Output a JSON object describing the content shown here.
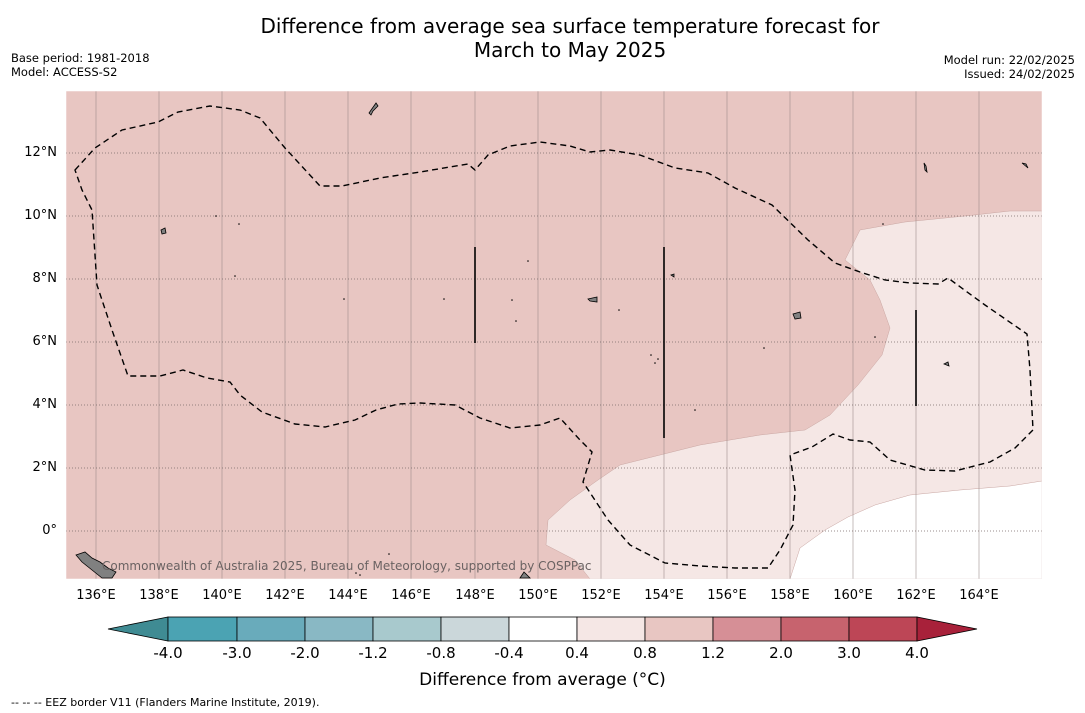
{
  "title_line1": "Difference from average sea surface temperature forecast for",
  "title_line2": "March to May 2025",
  "meta_left": {
    "base_period": "Base period: 1981-2018",
    "model": "Model: ACCESS-S2"
  },
  "meta_right": {
    "model_run": "Model run: 22/02/2025",
    "issued": "Issued: 24/02/2025"
  },
  "map": {
    "lat_labels": [
      "12°N",
      "10°N",
      "8°N",
      "6°N",
      "4°N",
      "2°N",
      "0°"
    ],
    "lon_labels": [
      "136°E",
      "138°E",
      "140°E",
      "142°E",
      "144°E",
      "146°E",
      "148°E",
      "150°E",
      "152°E",
      "154°E",
      "156°E",
      "158°E",
      "160°E",
      "162°E",
      "164°E"
    ],
    "copyright": "Commonwealth of Australia 2025, Bureau of Meteorology, supported by COSPPac",
    "colors": {
      "anomaly_0_8_to_1_2": "#e8c6c2",
      "anomaly_0_4_to_0_8": "#f5e7e5",
      "anomaly_neg0_4_to_0_4": "#ffffff",
      "land": "#808080"
    }
  },
  "colorbar": {
    "ticks": [
      "-4.0",
      "-3.0",
      "-2.0",
      "-1.2",
      "-0.8",
      "-0.4",
      "0.4",
      "0.8",
      "1.2",
      "2.0",
      "3.0",
      "4.0"
    ],
    "colors": [
      "#3f8b93",
      "#4ba3b3",
      "#69abbb",
      "#89b8c4",
      "#a8c9cd",
      "#cbd7da",
      "#ffffff",
      "#f5e7e5",
      "#e8c6c2",
      "#d68f96",
      "#c7636e",
      "#bd4656",
      "#a8213a"
    ],
    "label": "Difference from average (°C)"
  },
  "footer": "--  --  -- EEZ border V11 (Flanders Marine Institute, 2019)."
}
